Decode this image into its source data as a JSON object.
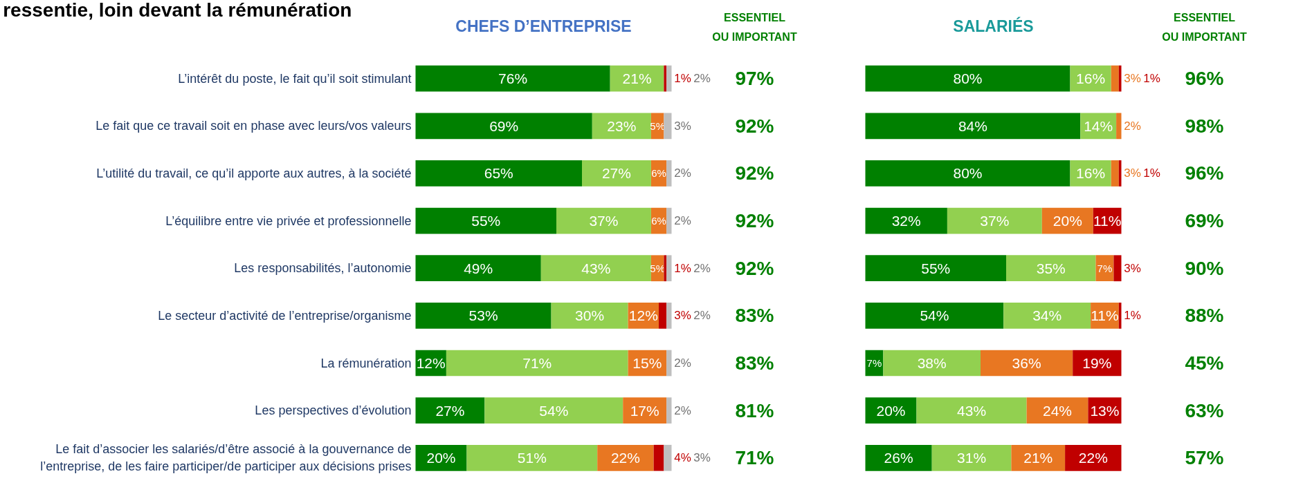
{
  "chart_data": [
    {
      "type": "bar",
      "orientation": "horizontal",
      "stacked": true,
      "title": "ressentie, loin devant la rémunération",
      "subtitle": "CHEFS D’ENTREPRISE",
      "tick_labels": "y",
      "categories": [
        "L’intérêt du poste, le fait qu’il soit stimulant",
        "Le fait que ce travail soit en phase avec leurs/vos valeurs",
        "L’utilité du travail, ce qu’il apporte aux autres, à la société",
        "L’équilibre entre vie privée et professionnelle",
        "Les responsabilités, l’autonomie",
        "Le secteur d’activité de l’entreprise/organisme",
        "La rémunération",
        "Les perspectives d’évolution",
        "Le fait d’associer les salariés/d’être associé à la gouvernance de l’entreprise, de les faire participer/de participer aux décisions prises"
      ],
      "series": [
        {
          "color": "#008000",
          "values": [
            76,
            69,
            65,
            55,
            49,
            53,
            12,
            27,
            20
          ],
          "value_labels": [
            "76%",
            "69%",
            "65%",
            "55%",
            "49%",
            "53%",
            "12%",
            "27%",
            "20%"
          ]
        },
        {
          "color": "#92d050",
          "values": [
            21,
            23,
            27,
            37,
            43,
            30,
            71,
            54,
            51
          ],
          "value_labels": [
            "21%",
            "23%",
            "27%",
            "37%",
            "43%",
            "30%",
            "71%",
            "54%",
            "51%"
          ]
        },
        {
          "color": "#e87722",
          "values": [
            null,
            5,
            6,
            6,
            5,
            12,
            15,
            17,
            22
          ],
          "value_labels": [
            null,
            "5%",
            "6%",
            "6%",
            "5%",
            "12%",
            "15%",
            "17%",
            "22%"
          ]
        },
        {
          "color": "#c00000",
          "values": [
            1,
            null,
            null,
            null,
            1,
            3,
            null,
            null,
            4
          ],
          "value_labels": [
            "1%",
            null,
            null,
            null,
            "1%",
            "3%",
            null,
            null,
            "4%"
          ]
        },
        {
          "color": "#bfbfbf",
          "values": [
            2,
            3,
            2,
            2,
            2,
            2,
            2,
            2,
            3
          ],
          "value_labels": [
            "2%",
            "3%",
            "2%",
            "2%",
            "2%",
            "2%",
            "2%",
            "2%",
            "3%"
          ]
        }
      ],
      "annotations": [
        "ESSENTIEL OU IMPORTANT",
        "97%",
        "92%",
        "92%",
        "92%",
        "92%",
        "83%",
        "83%",
        "81%",
        "71%"
      ]
    },
    {
      "type": "bar",
      "orientation": "horizontal",
      "stacked": true,
      "subtitle": "SALARIÉS",
      "tick_labels": false,
      "categories": [
        null,
        null,
        null,
        null,
        null,
        null,
        null,
        null,
        null
      ],
      "series": [
        {
          "color": "#008000",
          "values": [
            80,
            84,
            80,
            32,
            55,
            54,
            7,
            20,
            26
          ],
          "value_labels": [
            "80%",
            "84%",
            "80%",
            "32%",
            "55%",
            "54%",
            "7%",
            "20%",
            "26%"
          ]
        },
        {
          "color": "#92d050",
          "values": [
            16,
            14,
            16,
            37,
            35,
            34,
            38,
            43,
            31
          ],
          "value_labels": [
            "16%",
            "14%",
            "16%",
            "37%",
            "35%",
            "34%",
            "38%",
            "43%",
            "31%"
          ]
        },
        {
          "color": "#e87722",
          "values": [
            3,
            2,
            3,
            20,
            7,
            11,
            36,
            24,
            21
          ],
          "value_labels": [
            "3%",
            "2%",
            "3%",
            "20%",
            "7%",
            "11%",
            "36%",
            "24%",
            "21%"
          ]
        },
        {
          "color": "#c00000",
          "values": [
            1,
            null,
            1,
            11,
            3,
            1,
            19,
            13,
            22
          ],
          "value_labels": [
            "1%",
            null,
            "1%",
            "11%",
            "3%",
            "1%",
            "19%",
            "13%",
            "22%"
          ]
        }
      ],
      "annotations": [
        "ESSENTIEL OU IMPORTANT",
        "96%",
        "98%",
        "96%",
        "69%",
        "90%",
        "88%",
        "45%",
        "63%",
        "57%"
      ]
    }
  ]
}
